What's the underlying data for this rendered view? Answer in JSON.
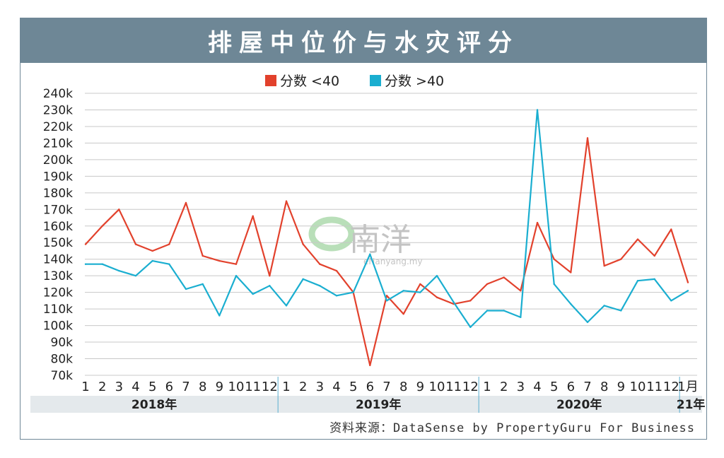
{
  "title": "排屋中位价与水灾评分",
  "source": "资料来源：DataSense by PropertyGuru For Business",
  "watermark": {
    "logo_text": "南洋",
    "domain": "eNanyang.my"
  },
  "colors": {
    "series_low": "#e2412c",
    "series_high": "#1aaed0",
    "title_bg": "#6e8796",
    "year_band": "#e4e9ec",
    "grid": "#c8c8c8"
  },
  "chart_data": {
    "type": "line",
    "title": "",
    "xlabel": "",
    "ylabel": "",
    "ylim": [
      70000,
      240000
    ],
    "yticks": [
      70000,
      80000,
      90000,
      100000,
      110000,
      120000,
      130000,
      140000,
      150000,
      160000,
      170000,
      180000,
      190000,
      200000,
      210000,
      220000,
      230000,
      240000
    ],
    "ytick_labels": [
      "70k",
      "80k",
      "90k",
      "100k",
      "110k",
      "120k",
      "130k",
      "140k",
      "150k",
      "160k",
      "170k",
      "180k",
      "190k",
      "200k",
      "210k",
      "220k",
      "230k",
      "240k"
    ],
    "grid": true,
    "legend_position": "top-center",
    "x_labels": [
      "1",
      "2",
      "3",
      "4",
      "5",
      "6",
      "7",
      "8",
      "9",
      "10",
      "11",
      "12",
      "1",
      "2",
      "3",
      "4",
      "5",
      "6",
      "7",
      "8",
      "9",
      "10",
      "11",
      "12",
      "1",
      "2",
      "3",
      "4",
      "5",
      "6",
      "7",
      "8",
      "9",
      "10",
      "11",
      "12",
      "1月"
    ],
    "year_groups": [
      {
        "label": "2018年",
        "months": 12
      },
      {
        "label": "2019年",
        "months": 12
      },
      {
        "label": "2020年",
        "months": 12
      },
      {
        "label": "21年",
        "months": 1
      }
    ],
    "series": [
      {
        "name": "分数 <40",
        "color": "#e2412c",
        "values": [
          149000,
          160000,
          170000,
          149000,
          145000,
          149000,
          174000,
          142000,
          139000,
          137000,
          166000,
          130000,
          175000,
          149000,
          137000,
          133000,
          120000,
          76000,
          118000,
          107000,
          125000,
          117000,
          113000,
          115000,
          125000,
          129000,
          121000,
          162000,
          140000,
          132000,
          213000,
          136000,
          140000,
          152000,
          142000,
          158000,
          126000
        ]
      },
      {
        "name": "分数 >40",
        "color": "#1aaed0",
        "values": [
          137000,
          137000,
          133000,
          130000,
          139000,
          137000,
          122000,
          125000,
          106000,
          130000,
          119000,
          124000,
          112000,
          128000,
          124000,
          118000,
          120000,
          143000,
          115000,
          121000,
          120000,
          130000,
          114000,
          99000,
          109000,
          109000,
          105000,
          230000,
          125000,
          113000,
          102000,
          112000,
          109000,
          127000,
          128000,
          115000,
          121000
        ]
      }
    ]
  }
}
